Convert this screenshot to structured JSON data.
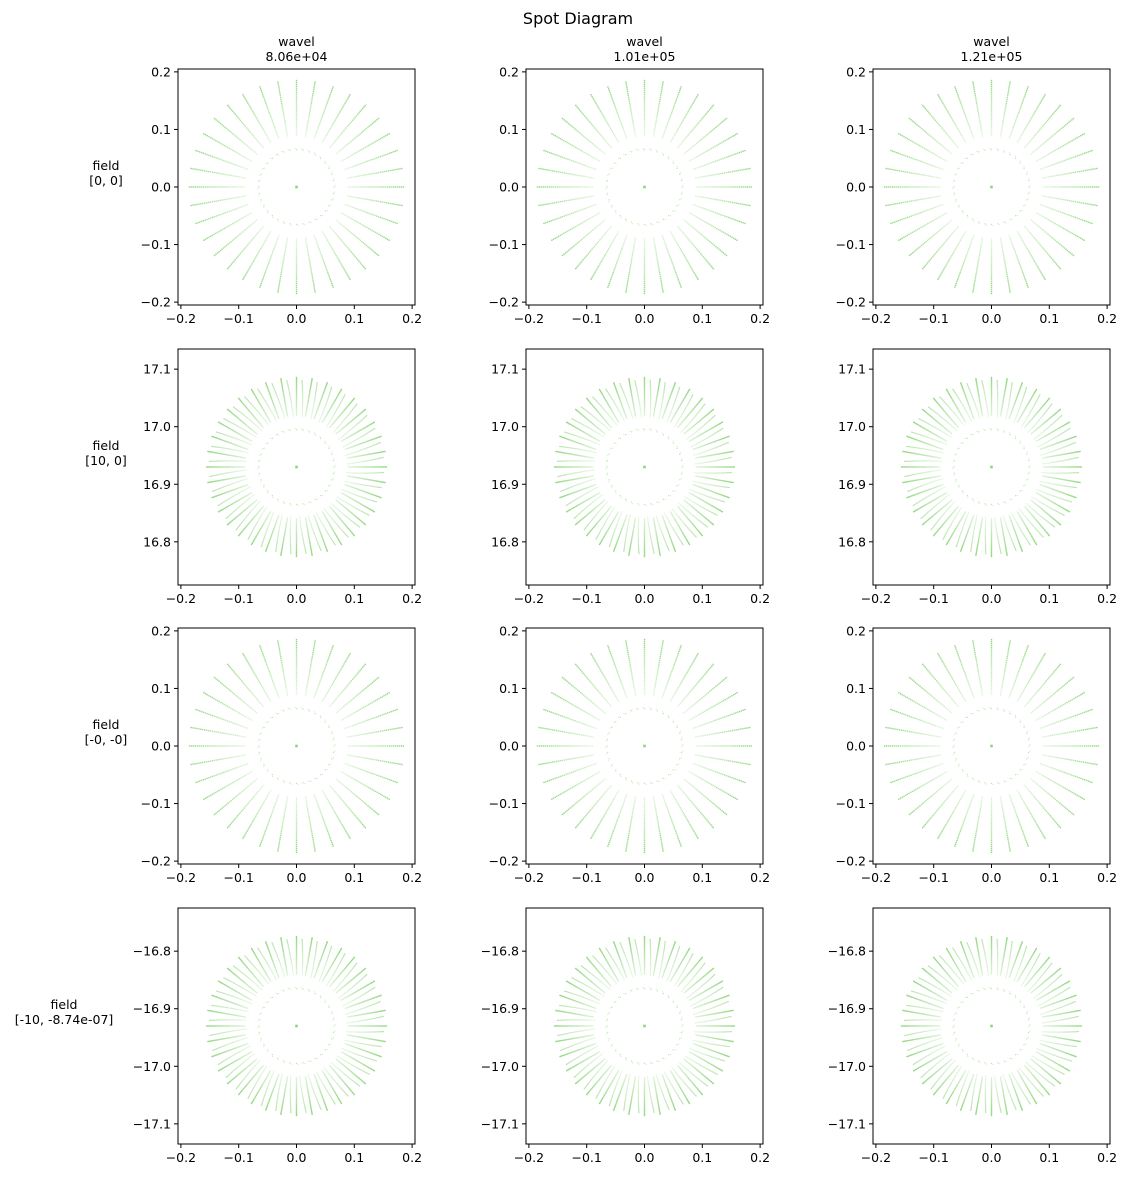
{
  "chart_data": {
    "type": "scatter",
    "title": "Spot Diagram",
    "marker_color": "#7fd16a",
    "columns": [
      {
        "title_line1": "wavel",
        "title_line2": "8.06e+04"
      },
      {
        "title_line1": "wavel",
        "title_line2": "1.01e+05"
      },
      {
        "title_line1": "wavel",
        "title_line2": "1.21e+05"
      }
    ],
    "rows": [
      {
        "label_line1": "field",
        "label_line2": "[0, 0]",
        "center_y": 0.0,
        "ylim": [
          -0.205,
          0.205
        ],
        "yticks": [
          -0.2,
          -0.1,
          0.0,
          0.1,
          0.2
        ],
        "ytick_labels": [
          "−0.2",
          "−0.1",
          "0.0",
          "0.1",
          "0.2"
        ],
        "spot_radius": 0.185,
        "spot_shape": "round"
      },
      {
        "label_line1": "field",
        "label_line2": "[10, 0]",
        "center_y": 16.93,
        "ylim": [
          16.725,
          17.135
        ],
        "yticks": [
          16.8,
          16.9,
          17.0,
          17.1
        ],
        "ytick_labels": [
          "16.8",
          "16.9",
          "17.0",
          "17.1"
        ],
        "spot_radius": 0.185,
        "spot_shape": "comatic"
      },
      {
        "label_line1": "field",
        "label_line2": "[-0, -0]",
        "center_y": 0.0,
        "ylim": [
          -0.205,
          0.205
        ],
        "yticks": [
          -0.2,
          -0.1,
          0.0,
          0.1,
          0.2
        ],
        "ytick_labels": [
          "−0.2",
          "−0.1",
          "0.0",
          "0.1",
          "0.2"
        ],
        "spot_radius": 0.185,
        "spot_shape": "round"
      },
      {
        "label_line1": "field",
        "label_line2": "[-10, -8.74e-07]",
        "center_y": -16.93,
        "ylim": [
          -17.135,
          -16.725
        ],
        "yticks": [
          -16.8,
          -16.9,
          -17.0,
          -17.1
        ],
        "ytick_labels": [
          "−16.8",
          "−16.9",
          "−17.0",
          "−17.1"
        ],
        "spot_radius": 0.185,
        "spot_shape": "comatic"
      }
    ],
    "xlim": [
      -0.205,
      0.205
    ],
    "xticks": [
      -0.2,
      -0.1,
      0.0,
      0.1,
      0.2
    ],
    "xtick_labels": [
      "−0.2",
      "−0.1",
      "0.0",
      "0.1",
      "0.2"
    ],
    "spokes": 36,
    "grid": false
  }
}
